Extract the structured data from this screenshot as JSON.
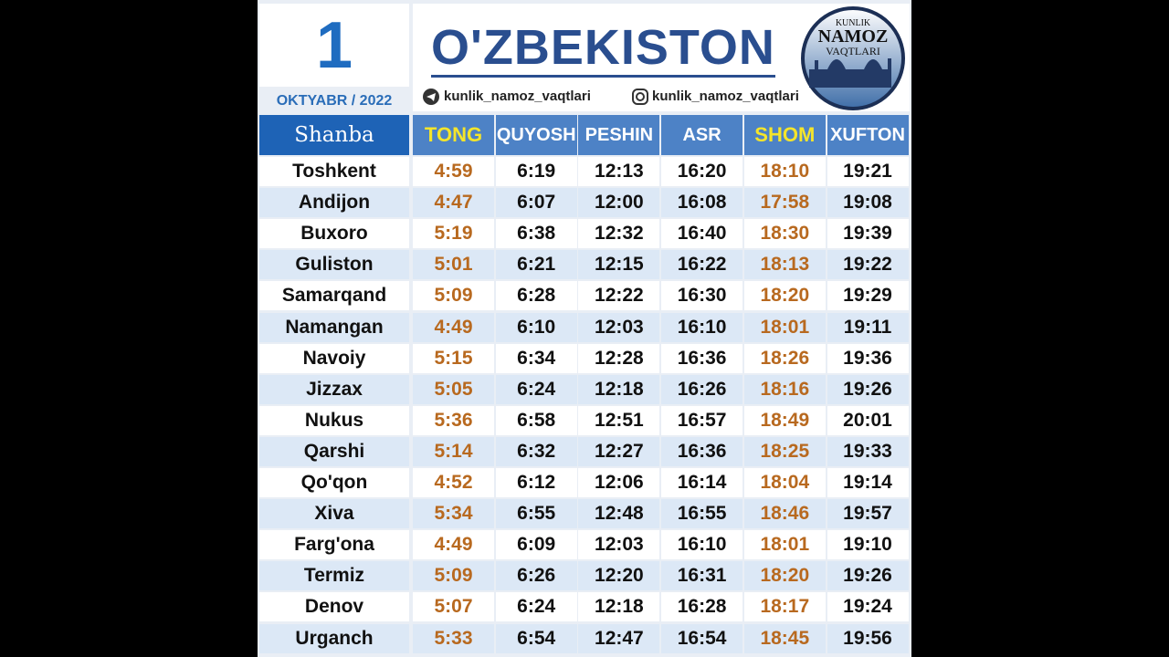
{
  "header": {
    "day": "1",
    "month_year": "OKTYABR / 2022",
    "title": "O'ZBEKISTON",
    "telegram": "kunlik_namoz_vaqtlari",
    "instagram": "kunlik_namoz_vaqtlari",
    "logo": {
      "top": "KUNLIK",
      "middle": "NAMOZ",
      "bottom": "VAQTLARI"
    }
  },
  "table": {
    "weekday": "Shanba",
    "columns": [
      "TONG",
      "QUYOSH",
      "PESHIN",
      "ASR",
      "SHOM",
      "XUFTON"
    ],
    "rows": [
      [
        "Toshkent",
        "4:59",
        "6:19",
        "12:13",
        "16:20",
        "18:10",
        "19:21"
      ],
      [
        "Andijon",
        "4:47",
        "6:07",
        "12:00",
        "16:08",
        "17:58",
        "19:08"
      ],
      [
        "Buxoro",
        "5:19",
        "6:38",
        "12:32",
        "16:40",
        "18:30",
        "19:39"
      ],
      [
        "Guliston",
        "5:01",
        "6:21",
        "12:15",
        "16:22",
        "18:13",
        "19:22"
      ],
      [
        "Samarqand",
        "5:09",
        "6:28",
        "12:22",
        "16:30",
        "18:20",
        "19:29"
      ],
      [
        "Namangan",
        "4:49",
        "6:10",
        "12:03",
        "16:10",
        "18:01",
        "19:11"
      ],
      [
        "Navoiy",
        "5:15",
        "6:34",
        "12:28",
        "16:36",
        "18:26",
        "19:36"
      ],
      [
        "Jizzax",
        "5:05",
        "6:24",
        "12:18",
        "16:26",
        "18:16",
        "19:26"
      ],
      [
        "Nukus",
        "5:36",
        "6:58",
        "12:51",
        "16:57",
        "18:49",
        "20:01"
      ],
      [
        "Qarshi",
        "5:14",
        "6:32",
        "12:27",
        "16:36",
        "18:25",
        "19:33"
      ],
      [
        "Qo'qon",
        "4:52",
        "6:12",
        "12:06",
        "16:14",
        "18:04",
        "19:14"
      ],
      [
        "Xiva",
        "5:34",
        "6:55",
        "12:48",
        "16:55",
        "18:46",
        "19:57"
      ],
      [
        "Farg'ona",
        "4:49",
        "6:09",
        "12:03",
        "16:10",
        "18:01",
        "19:10"
      ],
      [
        "Termiz",
        "5:09",
        "6:26",
        "12:20",
        "16:31",
        "18:20",
        "19:26"
      ],
      [
        "Denov",
        "5:07",
        "6:24",
        "12:18",
        "16:28",
        "18:17",
        "19:24"
      ],
      [
        "Urganch",
        "5:33",
        "6:54",
        "12:47",
        "16:54",
        "18:45",
        "19:56"
      ]
    ]
  }
}
